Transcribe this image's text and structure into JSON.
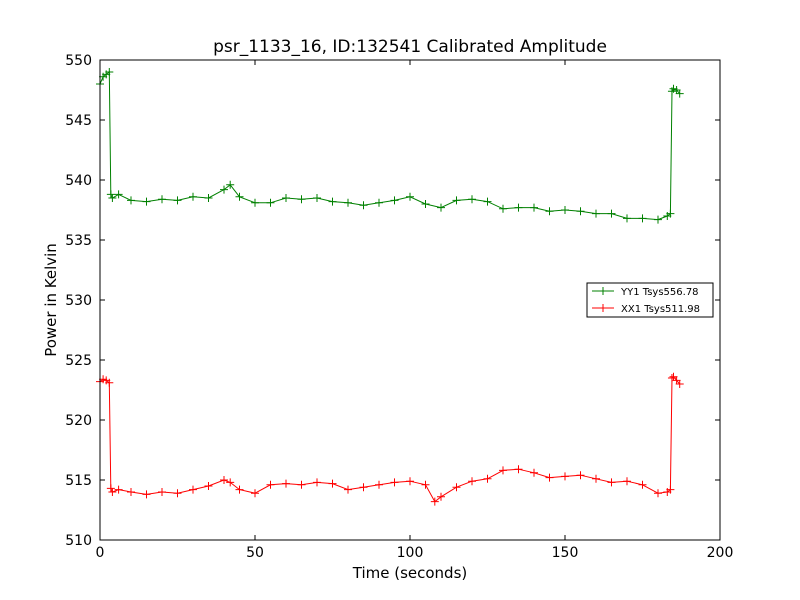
{
  "chart_data": {
    "type": "line",
    "title": "psr_1133_16, ID:132541 Calibrated Amplitude",
    "xlabel": "Time (seconds)",
    "ylabel": "Power in Kelvin",
    "xlim": [
      0,
      200
    ],
    "ylim": [
      510,
      550
    ],
    "xticks": [
      0,
      50,
      100,
      150,
      200
    ],
    "yticks": [
      510,
      515,
      520,
      525,
      530,
      535,
      540,
      545,
      550
    ],
    "grid": false,
    "legend_position": "center-right",
    "marker": "+",
    "series": [
      {
        "name": "YY1 Tsys556.78",
        "color": "#008000",
        "x": [
          0,
          1,
          2,
          3,
          3.5,
          4,
          6,
          10,
          15,
          20,
          25,
          30,
          35,
          40,
          42,
          45,
          50,
          55,
          60,
          65,
          70,
          75,
          80,
          85,
          90,
          95,
          100,
          105,
          110,
          115,
          120,
          125,
          130,
          135,
          140,
          145,
          150,
          155,
          160,
          165,
          170,
          175,
          180,
          183,
          184,
          184.5,
          185,
          186,
          187
        ],
        "y": [
          548,
          548.6,
          548.8,
          549,
          538.8,
          538.5,
          538.8,
          538.3,
          538.2,
          538.4,
          538.3,
          538.6,
          538.5,
          539.2,
          539.6,
          538.6,
          538.1,
          538.1,
          538.5,
          538.4,
          538.5,
          538.2,
          538.1,
          537.9,
          538.1,
          538.3,
          538.6,
          538,
          537.7,
          538.3,
          538.4,
          538.2,
          537.6,
          537.7,
          537.7,
          537.4,
          537.5,
          537.4,
          537.2,
          537.2,
          536.8,
          536.8,
          536.7,
          537,
          537.2,
          547.4,
          547.6,
          547.5,
          547.2
        ]
      },
      {
        "name": "XX1 Tsys511.98",
        "color": "#ff0000",
        "x": [
          0,
          1,
          2,
          3,
          3.5,
          4,
          6,
          10,
          15,
          20,
          25,
          30,
          35,
          40,
          42,
          45,
          50,
          55,
          60,
          65,
          70,
          75,
          80,
          85,
          90,
          95,
          100,
          105,
          108,
          110,
          115,
          120,
          125,
          130,
          135,
          140,
          145,
          150,
          155,
          160,
          165,
          170,
          175,
          180,
          183,
          184,
          184.5,
          185,
          186,
          187
        ],
        "y": [
          523.2,
          523.4,
          523.3,
          523.1,
          514.3,
          514,
          514.2,
          514,
          513.8,
          514,
          513.9,
          514.2,
          514.5,
          515,
          514.8,
          514.2,
          513.9,
          514.6,
          514.7,
          514.6,
          514.8,
          514.7,
          514.2,
          514.4,
          514.6,
          514.8,
          514.9,
          514.6,
          513.2,
          513.6,
          514.4,
          514.9,
          515.1,
          515.8,
          515.9,
          515.6,
          515.2,
          515.3,
          515.4,
          515.1,
          514.8,
          514.9,
          514.6,
          513.9,
          514,
          514.2,
          523.5,
          523.6,
          523.3,
          523
        ]
      }
    ]
  }
}
